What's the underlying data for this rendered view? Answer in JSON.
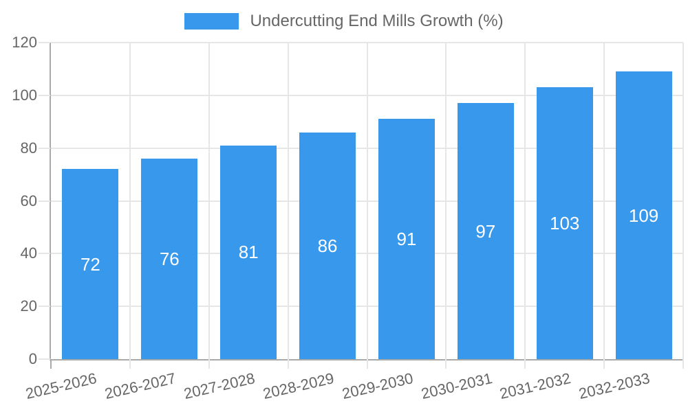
{
  "legend": {
    "label": "Undercutting End Mills Growth (%)"
  },
  "chart_data": {
    "type": "bar",
    "title": "Undercutting End Mills Growth (%)",
    "categories": [
      "2025-2026",
      "2026-2027",
      "2027-2028",
      "2028-2029",
      "2029-2030",
      "2030-2031",
      "2031-2032",
      "2032-2033"
    ],
    "values": [
      72,
      76,
      81,
      86,
      91,
      97,
      103,
      109
    ],
    "xlabel": "",
    "ylabel": "",
    "ylim": [
      0,
      120
    ],
    "yticks": [
      0,
      20,
      40,
      60,
      80,
      100,
      120
    ],
    "grid": true,
    "legend_position": "top",
    "colors": {
      "bar": "#3898EC",
      "value_label": "#FFFFFF",
      "grid": "#E6E6E6",
      "axis_line": "#A9A9A9",
      "tick_text": "#666666"
    }
  }
}
